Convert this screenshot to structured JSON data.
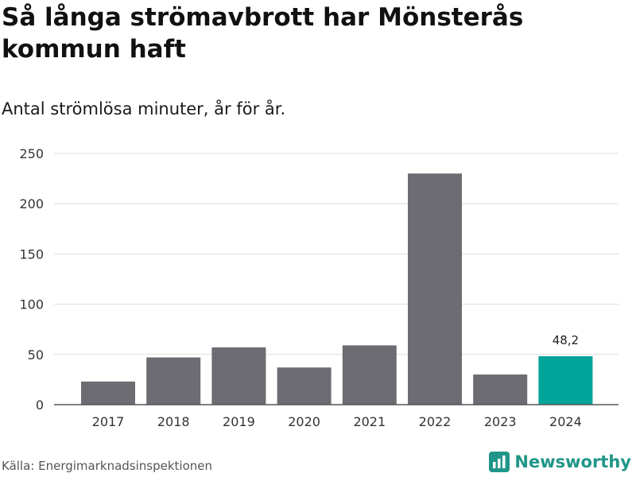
{
  "title": "Så långa strömavbrott har Mönsterås kommun haft",
  "subtitle": "Antal strömlösa minuter, år för år.",
  "source": "Källa: Energimarknadsinspektionen",
  "brand": "Newsworthy",
  "colors": {
    "bar": "#6d6c72",
    "highlight": "#00a499",
    "grid": "#dedede",
    "axis": "#555555",
    "brand": "#1f9688"
  },
  "chart_data": {
    "type": "bar",
    "title": "Så långa strömavbrott har Mönsterås kommun haft",
    "subtitle": "Antal strömlösa minuter, år för år.",
    "categories": [
      "2017",
      "2018",
      "2019",
      "2020",
      "2021",
      "2022",
      "2023",
      "2024"
    ],
    "values": [
      23,
      47,
      57,
      37,
      59,
      230,
      30,
      48.2
    ],
    "highlight_index": 7,
    "data_labels": [
      {
        "index": 7,
        "text": "48,2"
      }
    ],
    "ylim": [
      0,
      250
    ],
    "yticks": [
      0,
      50,
      100,
      150,
      200,
      250
    ],
    "xlabel": "",
    "ylabel": "",
    "grid": true
  }
}
